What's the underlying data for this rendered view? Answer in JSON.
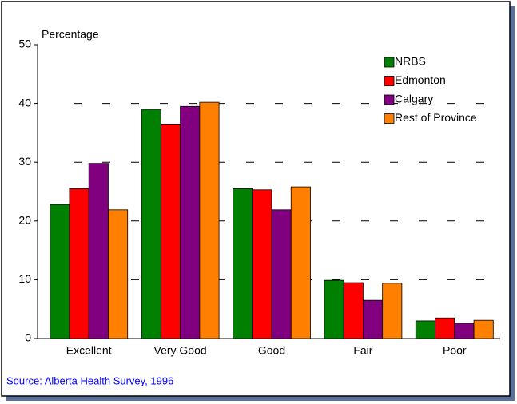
{
  "chart_data": {
    "type": "bar",
    "y_label": "Percentage",
    "source": "Source: Alberta Health Survey, 1996",
    "categories": [
      "Excellent",
      "Very Good",
      "Good",
      "Fair",
      "Poor"
    ],
    "series": [
      {
        "name": "NRBS",
        "color": "#008000",
        "values": [
          22.8,
          39.0,
          25.5,
          9.9,
          3.0
        ]
      },
      {
        "name": "Edmonton",
        "color": "#ff0000",
        "values": [
          25.5,
          36.5,
          25.3,
          9.5,
          3.5
        ]
      },
      {
        "name": "Calgary",
        "color": "#800080",
        "values": [
          29.8,
          39.5,
          21.9,
          6.5,
          2.6
        ]
      },
      {
        "name": "Rest of Province",
        "color": "#ff8000",
        "values": [
          21.9,
          40.2,
          25.8,
          9.4,
          3.1
        ]
      }
    ],
    "ylim": [
      0,
      50
    ],
    "yticks": [
      0,
      10,
      20,
      30,
      40,
      50
    ],
    "grid": true,
    "legend": "top-right"
  }
}
